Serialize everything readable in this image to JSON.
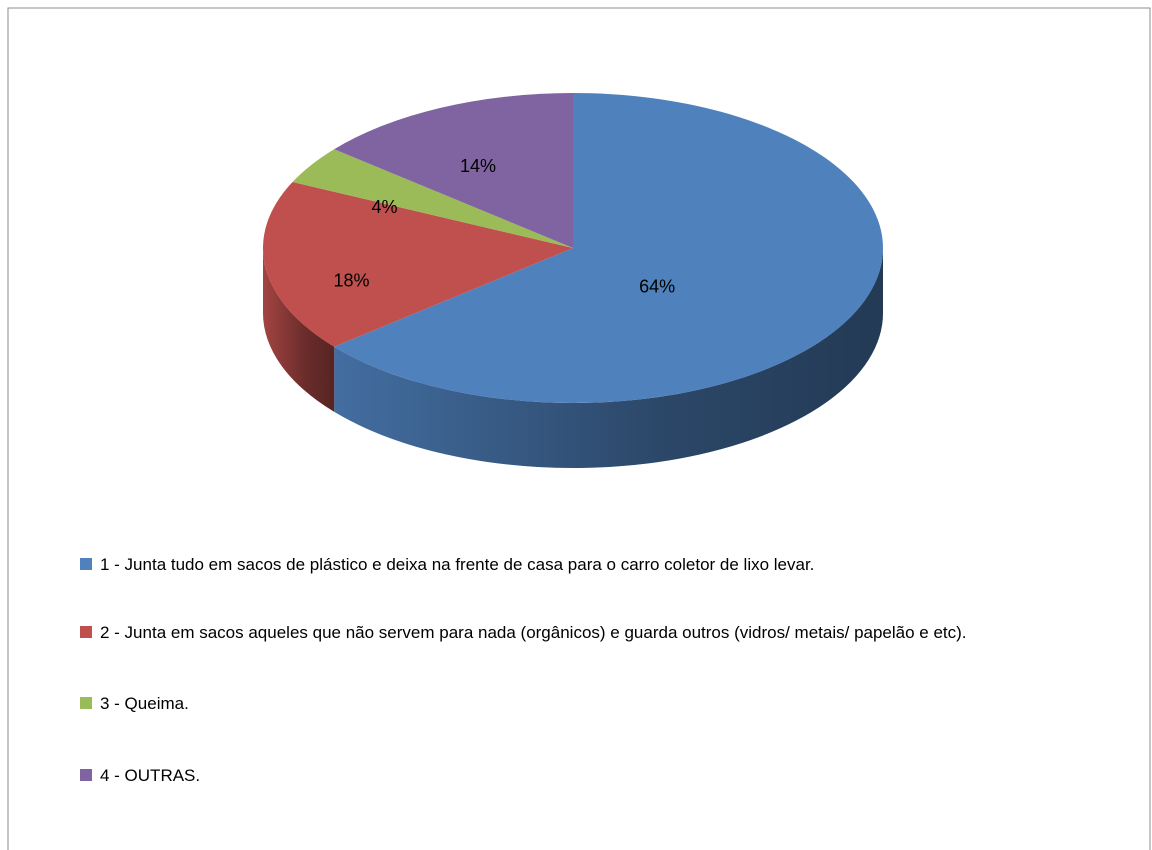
{
  "chart_data": {
    "type": "pie",
    "categories": [
      "1 - Junta tudo em sacos de plástico e deixa na frente de casa para o carro coletor de lixo levar.",
      "2 - Junta em sacos aqueles que não servem para nada (orgânicos) e guarda outros (vidros/ metais/ papelão e etc).",
      "3 - Queima.",
      "4 - OUTRAS."
    ],
    "values": [
      64,
      18,
      4,
      14
    ],
    "value_labels": [
      "64%",
      "18%",
      "4%",
      "14%"
    ],
    "colors": [
      "#4f81bd",
      "#c0504d",
      "#9bbb59",
      "#8064a2"
    ],
    "legend": "bottom"
  }
}
